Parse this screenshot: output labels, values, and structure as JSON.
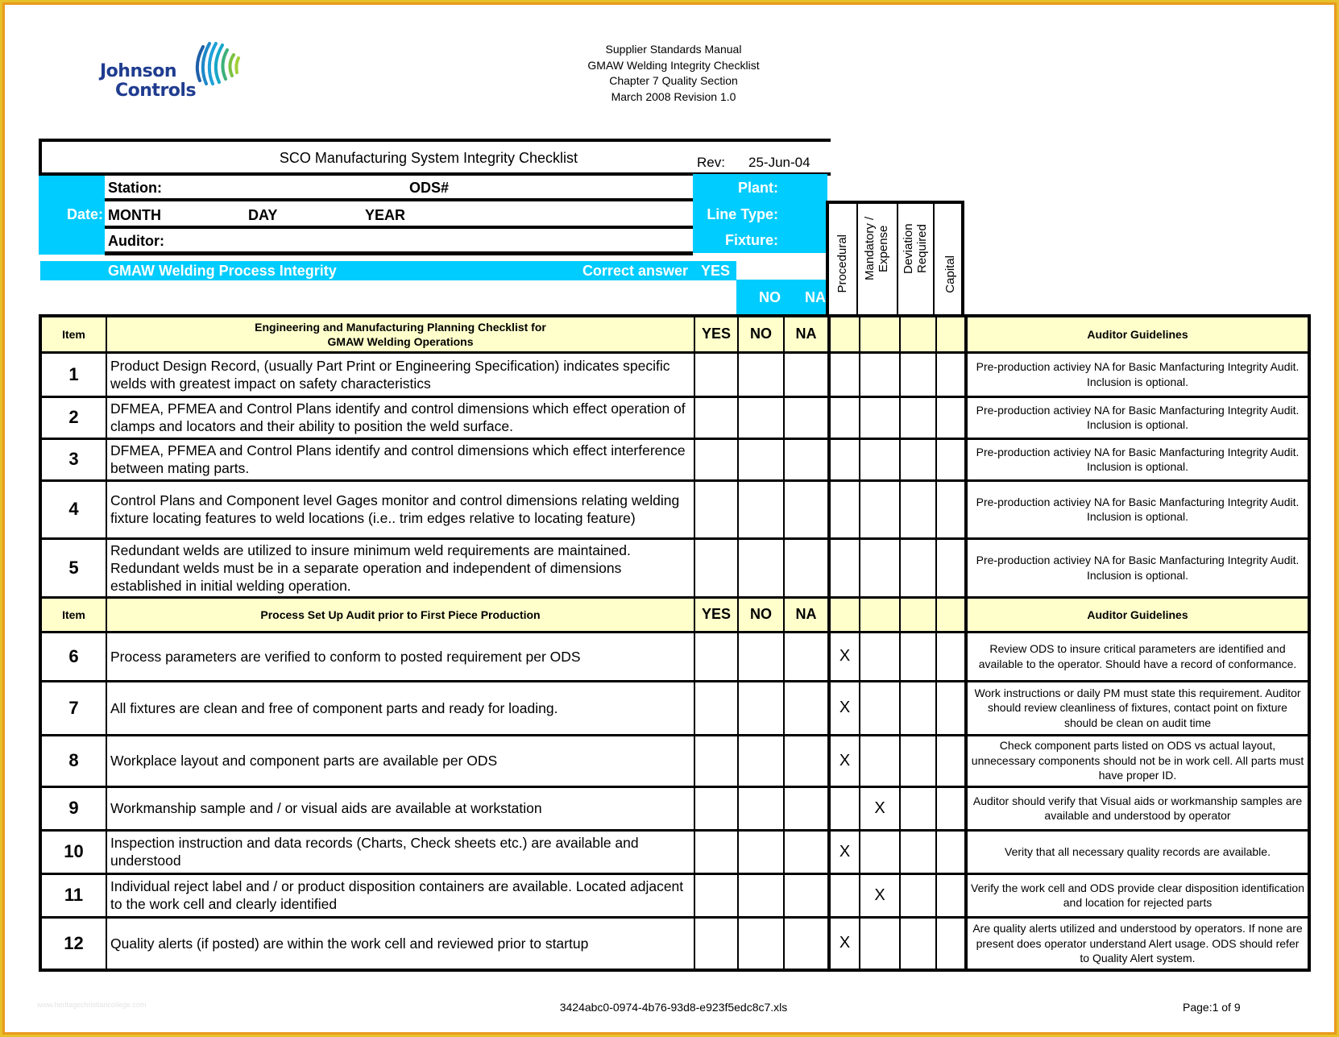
{
  "logo": {
    "line1": "Johnson",
    "line2": "Controls"
  },
  "doc_header": [
    "Supplier Standards Manual",
    "GMAW Welding Integrity Checklist",
    "Chapter 7 Quality Section",
    "March 2008 Revision 1.0"
  ],
  "form": {
    "title": "SCO Manufacturing System Integrity Checklist",
    "rev_label": "Rev:",
    "rev_value": "25-Jun-04",
    "date_label": "Date:",
    "station_label": "Station:",
    "ods_label": "ODS#",
    "month_label": "MONTH",
    "day_label": "DAY",
    "year_label": "YEAR",
    "auditor_label": "Auditor:",
    "plant_label": "Plant:",
    "line_type_label": "Line Type:",
    "fixture_label": "Fixture:",
    "process_title": "GMAW Welding Process Integrity",
    "correct_answer_label": "Correct answer",
    "yes": "YES",
    "no": "NO",
    "na": "NA"
  },
  "category_headers": [
    "Procedural",
    "Mandatory / Expense",
    "Deviation Required",
    "Capital"
  ],
  "colors": {
    "cyan": "#00CCFF",
    "section_header": "#FFFFCC",
    "logo_blue": "#1F3C8F",
    "frame": "#E89A1E"
  },
  "sections": [
    {
      "item_label": "Item",
      "title_line1": "Engineering and Manufacturing Planning Checklist for",
      "title_line2": "GMAW Welding Operations",
      "yes": "YES",
      "no": "NO",
      "na": "NA",
      "guidelines_label": "Auditor Guidelines",
      "rows": [
        {
          "item": "1",
          "text": "Product Design Record, (usually Part Print or Engineering Specification) indicates specific welds with greatest impact on safety characteristics",
          "marks": [
            "",
            "",
            "",
            ""
          ],
          "guideline": "Pre-production activiey NA for Basic Manfacturing Integrity Audit. Inclusion is optional."
        },
        {
          "item": "2",
          "text": "DFMEA, PFMEA and Control Plans identify and control dimensions which effect operation of clamps and locators and their ability to position the weld surface.",
          "marks": [
            "",
            "",
            "",
            ""
          ],
          "guideline": "Pre-production activiey NA for Basic Manfacturing Integrity Audit. Inclusion is optional."
        },
        {
          "item": "3",
          "text": "DFMEA, PFMEA and Control Plans identify and control dimensions which effect interference between mating parts.",
          "marks": [
            "",
            "",
            "",
            ""
          ],
          "guideline": "Pre-production activiey NA for Basic Manfacturing Integrity Audit. Inclusion is optional."
        },
        {
          "item": "4",
          "text": "Control Plans and Component level Gages monitor and control dimensions relating welding fixture locating features  to weld locations (i.e.. trim edges relative to locating feature)",
          "marks": [
            "",
            "",
            "",
            ""
          ],
          "guideline": "Pre-production activiey NA for Basic Manfacturing Integrity Audit. Inclusion is optional."
        },
        {
          "item": "5",
          "text": "Redundant welds are utilized to insure minimum weld requirements are maintained. Redundant welds must be in a separate operation and independent of dimensions established in initial welding operation.",
          "marks": [
            "",
            "",
            "",
            ""
          ],
          "guideline": "Pre-production activiey NA for Basic Manfacturing Integrity Audit. Inclusion is optional."
        }
      ]
    },
    {
      "item_label": "Item",
      "title_line1": "Process Set Up Audit prior to First Piece Production",
      "title_line2": "",
      "yes": "YES",
      "no": "NO",
      "na": "NA",
      "guidelines_label": "Auditor Guidelines",
      "rows": [
        {
          "item": "6",
          "text": "Process parameters are verified to conform to posted requirement per ODS",
          "marks": [
            "X",
            "",
            "",
            ""
          ],
          "guideline": "Review ODS to insure critical parameters are identified and available to the operator. Should have a record of conformance."
        },
        {
          "item": "7",
          "text": "All fixtures are clean and free of component parts and ready for loading.",
          "marks": [
            "X",
            "",
            "",
            ""
          ],
          "guideline": "Work instructions or daily PM must state this requirement. Auditor should review cleanliness of fixtures, contact point on fixture should be clean on audit time"
        },
        {
          "item": "8",
          "text": "Workplace layout and component parts are available per ODS",
          "marks": [
            "X",
            "",
            "",
            ""
          ],
          "guideline": "Check component parts listed on ODS vs actual layout, unnecessary components should not be in work cell. All parts must have proper ID."
        },
        {
          "item": "9",
          "text": "Workmanship sample and / or visual aids are available at workstation",
          "marks": [
            "",
            "X",
            "",
            ""
          ],
          "guideline": "Auditor should verify that Visual aids or workmanship samples are available and understood by operator"
        },
        {
          "item": "10",
          "text": "Inspection instruction and data records (Charts, Check sheets etc.) are available and understood",
          "marks": [
            "X",
            "",
            "",
            ""
          ],
          "guideline": "Verity that all necessary quality records are available."
        },
        {
          "item": "11",
          "text": "Individual reject label and / or product disposition containers are available. Located adjacent to the work cell and clearly identified",
          "marks": [
            "",
            "X",
            "",
            ""
          ],
          "guideline": "Verify the work cell and ODS provide clear disposition identification and location for rejected parts"
        },
        {
          "item": "12",
          "text": "Quality alerts (if posted) are within the work cell and reviewed prior to startup",
          "marks": [
            "X",
            "",
            "",
            ""
          ],
          "guideline": "Are quality alerts utilized and understood by operators. If none are present does operator understand Alert usage. ODS should refer to Quality Alert system."
        }
      ]
    }
  ],
  "footer": {
    "watermark": "www.heritagechristiancollege.com",
    "filename": "3424abc0-0974-4b76-93d8-e923f5edc8c7.xls",
    "page": "Page:1 of 9"
  }
}
